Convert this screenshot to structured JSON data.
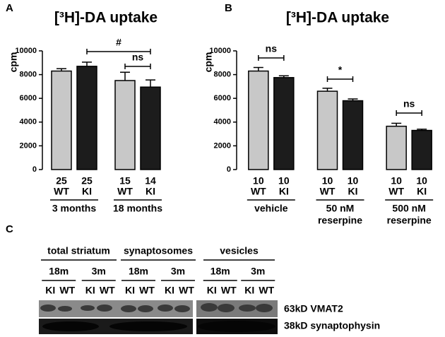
{
  "chart_data": [
    {
      "type": "bar",
      "panel_label": "A",
      "title": "[³H]-DA uptake",
      "ylabel": "cpm",
      "ylim": [
        0,
        10000
      ],
      "yticks": [
        0,
        2000,
        4000,
        6000,
        8000,
        10000
      ],
      "groups": [
        [
          "3 months"
        ],
        [
          "18 months"
        ]
      ],
      "series": [
        {
          "name": "WT",
          "color": "#c8c8c8",
          "values": [
            8300,
            7500
          ],
          "errors": [
            200,
            700
          ],
          "n": [
            25,
            15
          ]
        },
        {
          "name": "KI",
          "color": "#1c1c1c",
          "values": [
            8700,
            6950
          ],
          "errors": [
            350,
            600
          ],
          "n": [
            25,
            14
          ]
        }
      ],
      "annotations": [
        "#",
        "ns"
      ]
    },
    {
      "type": "bar",
      "panel_label": "B",
      "title": "[³H]-DA uptake",
      "ylabel": "cpm",
      "ylim": [
        0,
        10000
      ],
      "yticks": [
        0,
        2000,
        4000,
        6000,
        8000,
        10000
      ],
      "groups": [
        [
          "vehicle"
        ],
        [
          "50 nM",
          "reserpine"
        ],
        [
          "500 nM",
          "reserpine"
        ]
      ],
      "series": [
        {
          "name": "WT",
          "color": "#c8c8c8",
          "values": [
            8300,
            6600,
            3650
          ],
          "errors": [
            300,
            250,
            250
          ],
          "n": [
            10,
            10,
            10
          ]
        },
        {
          "name": "KI",
          "color": "#1c1c1c",
          "values": [
            7750,
            5800,
            3300
          ],
          "errors": [
            150,
            150,
            100
          ],
          "n": [
            10,
            10,
            10
          ]
        }
      ],
      "annotations": [
        "ns",
        "*",
        "ns"
      ]
    }
  ],
  "blot": {
    "panel_label": "C",
    "sections": [
      {
        "label": "total striatum",
        "ages": [
          "18m",
          "3m"
        ]
      },
      {
        "label": "synaptosomes",
        "ages": [
          "18m",
          "3m"
        ]
      },
      {
        "label": "vesicles",
        "ages": [
          "18m",
          "3m"
        ]
      }
    ],
    "lanes": [
      "KI",
      "WT"
    ],
    "bands": [
      "63kD VMAT2",
      "38kD synaptophysin"
    ]
  }
}
